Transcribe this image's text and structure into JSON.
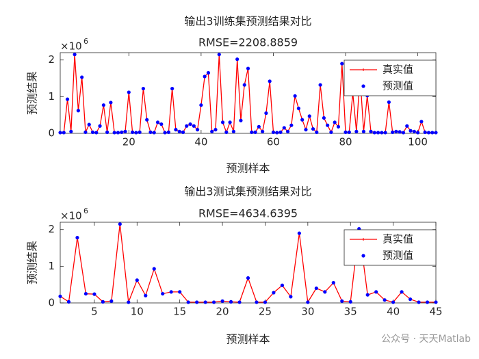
{
  "chart_data": [
    {
      "type": "line",
      "title": "输出3训练集预测结果对比",
      "subtitle": "RMSE=2208.8859",
      "xlabel": "预测样本",
      "ylabel": "预测结果",
      "y_exponent_label": {
        "base": "×10",
        "power": "6"
      },
      "xlim": [
        1,
        105
      ],
      "xticks": [
        20,
        40,
        60,
        80,
        100
      ],
      "ylim": [
        0,
        2.2
      ],
      "yticks": [
        0,
        1,
        2
      ],
      "legend": "upper right",
      "x": [
        1,
        2,
        3,
        4,
        5,
        6,
        7,
        8,
        9,
        10,
        11,
        12,
        13,
        14,
        15,
        16,
        17,
        18,
        19,
        20,
        21,
        22,
        23,
        24,
        25,
        26,
        27,
        28,
        29,
        30,
        31,
        32,
        33,
        34,
        35,
        36,
        37,
        38,
        39,
        40,
        41,
        42,
        43,
        44,
        45,
        46,
        47,
        48,
        49,
        50,
        51,
        52,
        53,
        54,
        55,
        56,
        57,
        58,
        59,
        60,
        61,
        62,
        63,
        64,
        65,
        66,
        67,
        68,
        69,
        70,
        71,
        72,
        73,
        74,
        75,
        76,
        77,
        78,
        79,
        80,
        81,
        82,
        83,
        84,
        85,
        86,
        87,
        88,
        89,
        90,
        91,
        92,
        93,
        94,
        95,
        96,
        97,
        98,
        99,
        100,
        101,
        102,
        103,
        104,
        105
      ],
      "series": [
        {
          "name": "真实值",
          "color": "#ff0000",
          "values": [
            0.02,
            0.02,
            0.93,
            0.05,
            2.15,
            0.62,
            1.53,
            0.03,
            0.24,
            0.03,
            0.02,
            0.2,
            0.77,
            0.03,
            0.84,
            0.02,
            0.02,
            0.03,
            0.05,
            1.12,
            0.03,
            0.02,
            0.03,
            1.22,
            0.37,
            0.03,
            0.02,
            0.3,
            0.25,
            0.02,
            0.03,
            1.22,
            0.1,
            0.05,
            0.03,
            0.2,
            0.25,
            0.2,
            0.1,
            0.77,
            1.55,
            1.65,
            0.05,
            0.1,
            2.15,
            0.3,
            0.03,
            0.3,
            0.05,
            2.02,
            0.35,
            1.32,
            1.77,
            0.03,
            0.03,
            0.18,
            0.05,
            0.55,
            1.42,
            0.03,
            0.02,
            0.03,
            0.15,
            0.05,
            0.22,
            1.02,
            0.68,
            0.37,
            0.1,
            0.47,
            0.12,
            0.03,
            1.32,
            0.42,
            0.22,
            0.03,
            0.3,
            0.18,
            1.9,
            0.03,
            0.03,
            1.1,
            0.05,
            1.6,
            0.05,
            1.03,
            0.05,
            0.02,
            0.02,
            0.02,
            0.02,
            0.85,
            0.03,
            0.05,
            0.04,
            0.02,
            0.2,
            0.07,
            0.05,
            0.02,
            0.32,
            0.03,
            0.02,
            0.02,
            0.02
          ]
        },
        {
          "name": "预测值",
          "color": "#0000ff",
          "values": [
            0.02,
            0.02,
            0.93,
            0.05,
            2.15,
            0.62,
            1.53,
            0.03,
            0.24,
            0.03,
            0.02,
            0.2,
            0.77,
            0.03,
            0.84,
            0.02,
            0.02,
            0.03,
            0.05,
            1.12,
            0.03,
            0.02,
            0.03,
            1.22,
            0.37,
            0.03,
            0.02,
            0.3,
            0.25,
            0.02,
            0.03,
            1.22,
            0.1,
            0.05,
            0.03,
            0.2,
            0.25,
            0.2,
            0.1,
            0.77,
            1.55,
            1.65,
            0.05,
            0.1,
            2.15,
            0.3,
            0.03,
            0.3,
            0.05,
            2.02,
            0.35,
            1.32,
            1.77,
            0.03,
            0.03,
            0.18,
            0.05,
            0.55,
            1.42,
            0.03,
            0.02,
            0.03,
            0.15,
            0.05,
            0.22,
            1.02,
            0.68,
            0.37,
            0.1,
            0.47,
            0.12,
            0.03,
            1.32,
            0.42,
            0.22,
            0.03,
            0.3,
            0.18,
            1.9,
            0.03,
            0.03,
            1.1,
            0.05,
            1.6,
            0.05,
            1.03,
            0.05,
            0.02,
            0.02,
            0.02,
            0.02,
            0.85,
            0.03,
            0.05,
            0.04,
            0.02,
            0.2,
            0.07,
            0.05,
            0.02,
            0.32,
            0.03,
            0.02,
            0.02,
            0.02
          ]
        }
      ]
    },
    {
      "type": "line",
      "title": "输出3测试集预测结果对比",
      "subtitle": "RMSE=4634.6395",
      "xlabel": "预测样本",
      "ylabel": "预测结果",
      "y_exponent_label": {
        "base": "×10",
        "power": "6"
      },
      "xlim": [
        1,
        45
      ],
      "xticks": [
        5,
        10,
        15,
        20,
        25,
        30,
        35,
        40,
        45
      ],
      "ylim": [
        0,
        2.2
      ],
      "yticks": [
        0,
        1,
        2
      ],
      "legend": "upper right",
      "x": [
        1,
        2,
        3,
        4,
        5,
        6,
        7,
        8,
        9,
        10,
        11,
        12,
        13,
        14,
        15,
        16,
        17,
        18,
        19,
        20,
        21,
        22,
        23,
        24,
        25,
        26,
        27,
        28,
        29,
        30,
        31,
        32,
        33,
        34,
        35,
        36,
        37,
        38,
        39,
        40,
        41,
        42,
        43,
        44,
        45
      ],
      "series": [
        {
          "name": "真实值",
          "color": "#ff0000",
          "values": [
            0.18,
            0.03,
            1.78,
            0.25,
            0.24,
            0.03,
            0.05,
            2.15,
            0.02,
            0.62,
            0.2,
            0.93,
            0.25,
            0.3,
            0.3,
            0.02,
            0.02,
            0.02,
            0.02,
            0.05,
            0.03,
            0.02,
            0.68,
            0.02,
            0.02,
            0.28,
            0.48,
            0.17,
            1.9,
            0.02,
            0.4,
            0.3,
            0.55,
            0.05,
            0.03,
            2.02,
            0.22,
            0.3,
            0.08,
            0.02,
            0.3,
            0.1,
            0.02,
            0.02,
            0.02
          ]
        },
        {
          "name": "预测值",
          "color": "#0000ff",
          "values": [
            0.18,
            0.03,
            1.78,
            0.25,
            0.24,
            0.03,
            0.05,
            2.15,
            0.02,
            0.62,
            0.2,
            0.93,
            0.25,
            0.3,
            0.3,
            0.02,
            0.02,
            0.02,
            0.02,
            0.05,
            0.03,
            0.02,
            0.68,
            0.02,
            0.02,
            0.28,
            0.48,
            0.17,
            1.9,
            0.02,
            0.4,
            0.3,
            0.55,
            0.05,
            0.03,
            2.02,
            0.22,
            0.3,
            0.08,
            0.02,
            0.3,
            0.1,
            0.02,
            0.02,
            0.02
          ]
        }
      ]
    }
  ],
  "watermark": "公众号 · 天天Matlab"
}
